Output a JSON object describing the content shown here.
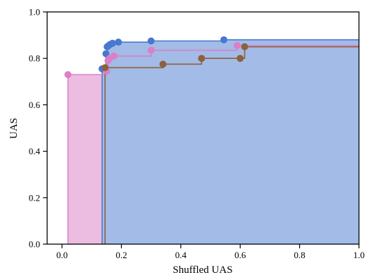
{
  "chart_data": {
    "type": "line",
    "xlabel": "Shuffled UAS",
    "ylabel": "UAS",
    "xlim": [
      -0.05,
      1.0
    ],
    "ylim": [
      0.0,
      1.0
    ],
    "xticks": [
      "0.0",
      "0.2",
      "0.4",
      "0.6",
      "0.8",
      "1.0"
    ],
    "yticks": [
      "0.0",
      "0.2",
      "0.4",
      "0.6",
      "0.8",
      "1.0"
    ],
    "grid": false,
    "legend": "none",
    "series": [
      {
        "color": "#4878cf",
        "fill": "#a3bbe7",
        "points": [
          [
            0.135,
            0.755
          ],
          [
            0.148,
            0.82
          ],
          [
            0.152,
            0.85
          ],
          [
            0.157,
            0.855
          ],
          [
            0.162,
            0.86
          ],
          [
            0.17,
            0.865
          ],
          [
            0.19,
            0.87
          ],
          [
            0.3,
            0.875
          ],
          [
            0.545,
            0.88
          ]
        ],
        "step_to": [
          1.0,
          0.88
        ]
      },
      {
        "color": "#dd7ec8",
        "fill": "#ecbde0",
        "points": [
          [
            0.02,
            0.73
          ],
          [
            0.15,
            0.745
          ],
          [
            0.155,
            0.79
          ],
          [
            0.16,
            0.8
          ],
          [
            0.175,
            0.81
          ],
          [
            0.3,
            0.835
          ],
          [
            0.59,
            0.855
          ]
        ],
        "step_to": [
          1.0,
          0.855
        ]
      },
      {
        "color": "#8c613c",
        "fill": "none",
        "points": [
          [
            0.145,
            0.76
          ],
          [
            0.34,
            0.775
          ],
          [
            0.47,
            0.8
          ],
          [
            0.6,
            0.8
          ],
          [
            0.615,
            0.85
          ]
        ],
        "step_to": [
          1.0,
          0.85
        ]
      }
    ]
  }
}
